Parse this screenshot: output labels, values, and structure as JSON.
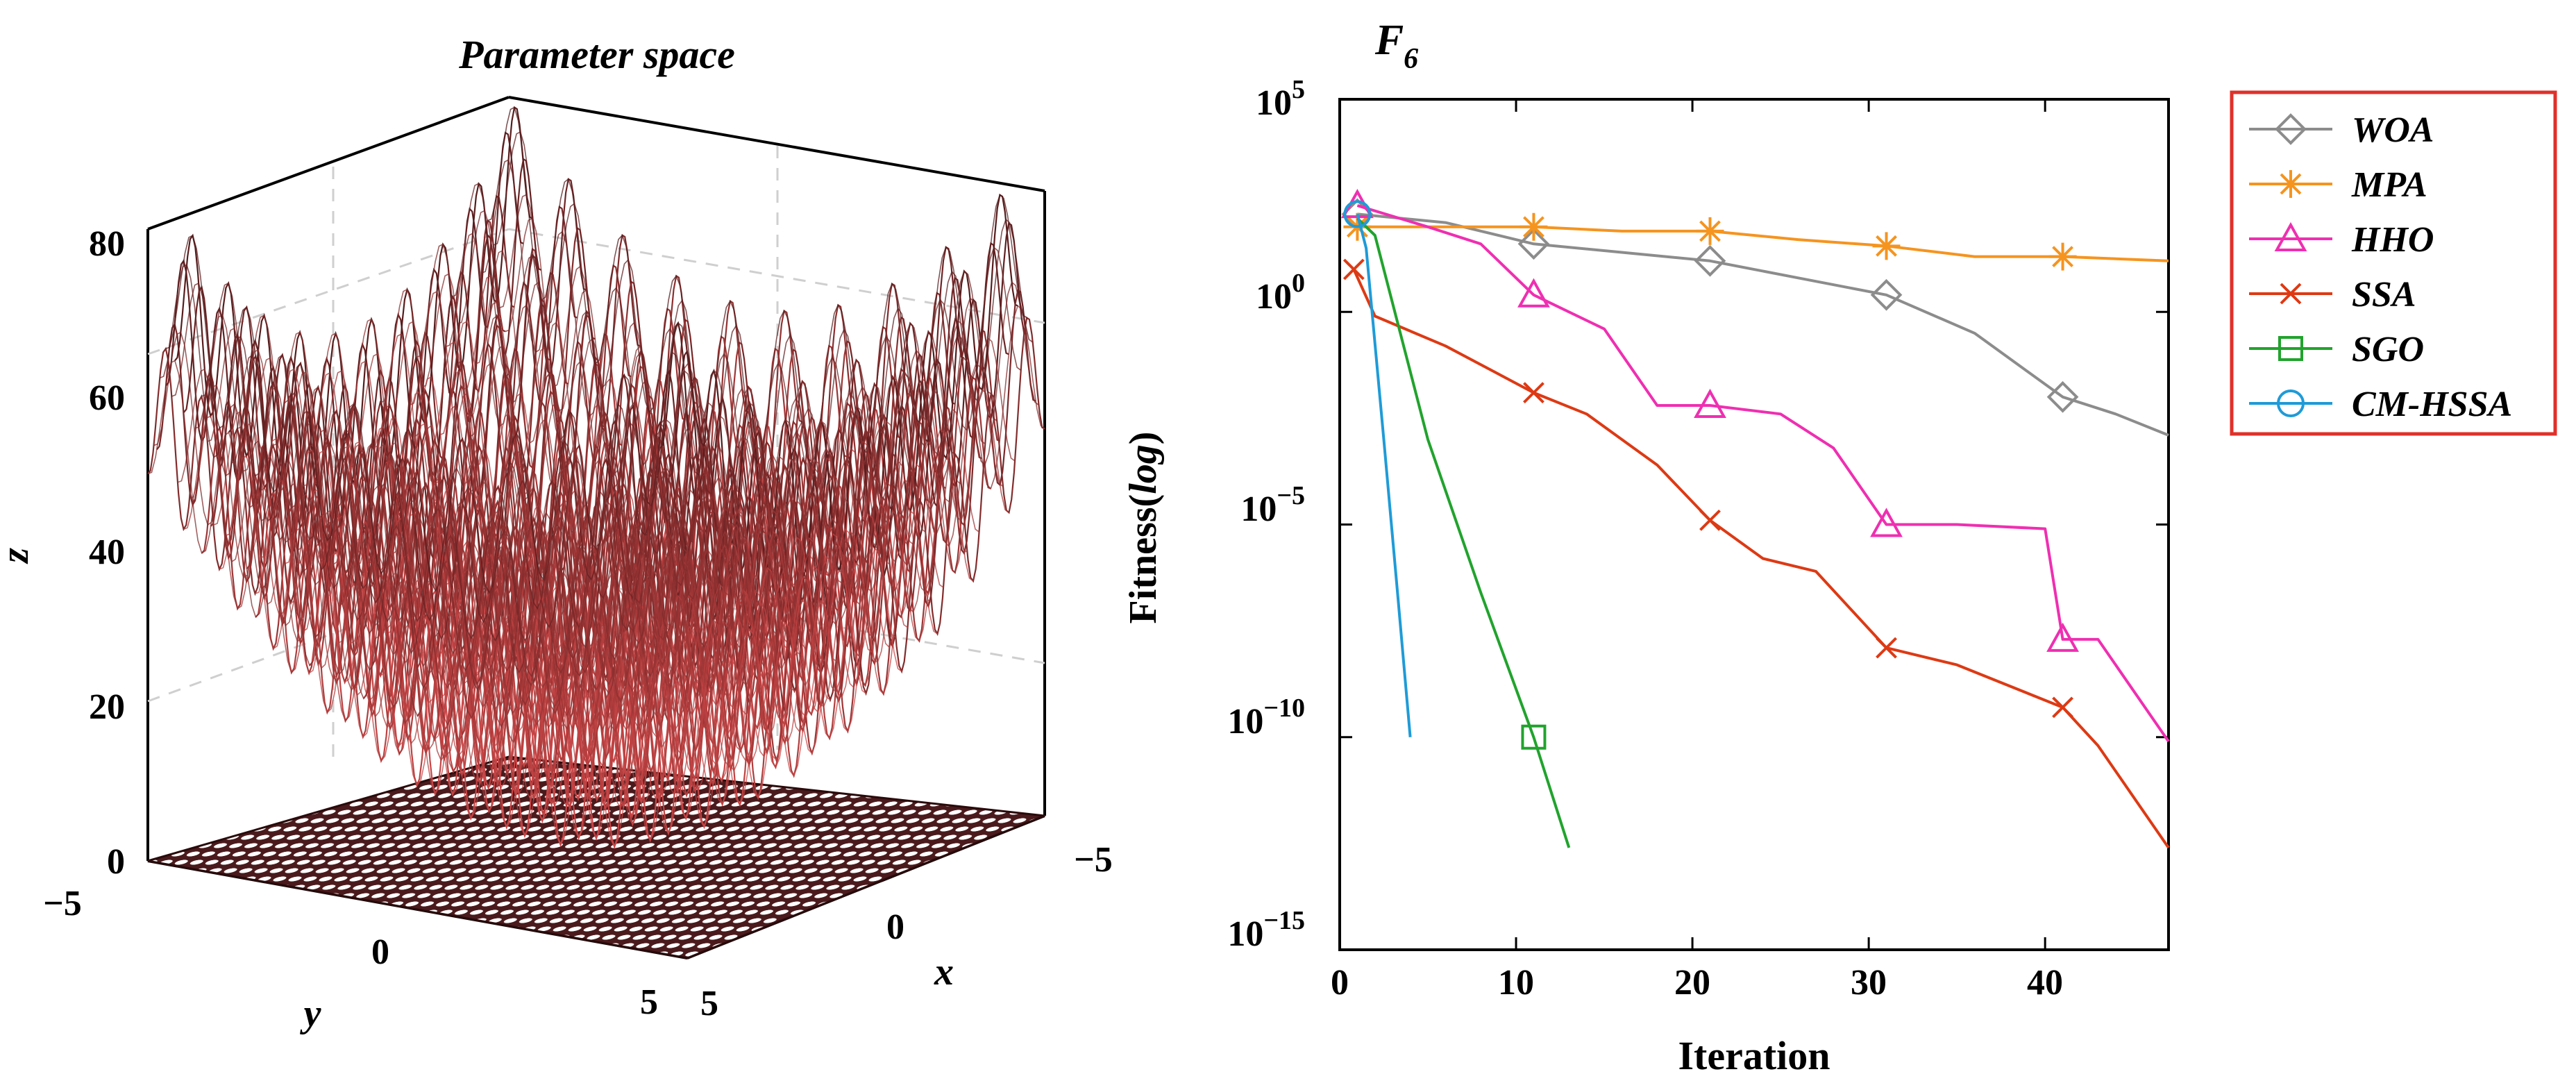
{
  "colors": {
    "axis": "#000000",
    "grid": "#d9d9d9",
    "legend_border": "#e0302a",
    "surface_top": "#1a0506",
    "surface_bottom": "#ff5a5a"
  },
  "chart_data": [
    {
      "type": "surface",
      "title": "Parameter space",
      "zlabel": "z",
      "xlabel": "x",
      "ylabel": "y",
      "zlim": [
        0,
        80
      ],
      "z_ticks": [
        "0",
        "20",
        "40",
        "60",
        "80"
      ],
      "x_range": [
        -5,
        5
      ],
      "y_range": [
        -5,
        5
      ],
      "x_ticks": [
        "−5",
        "0",
        "5"
      ],
      "y_ticks": [
        "−5",
        "0",
        "5"
      ],
      "function": "Rastrigin-like: 20 + x^2 + y^2 - 10(cos 2πx + cos 2πy)",
      "peak_z": 80
    },
    {
      "type": "line",
      "title_main": "F",
      "title_sub": "6",
      "xlabel": "Iteration",
      "ylabel_main": "Fitness(",
      "ylabel_italic": "log",
      "ylabel_close": ")",
      "yscale": "log",
      "xlim": [
        0,
        47
      ],
      "ylim_exp": [
        -15,
        5
      ],
      "x_ticks": [
        {
          "value": 0,
          "label": "0"
        },
        {
          "value": 10,
          "label": "10"
        },
        {
          "value": 20,
          "label": "20"
        },
        {
          "value": 30,
          "label": "30"
        },
        {
          "value": 40,
          "label": "40"
        }
      ],
      "y_ticks": [
        {
          "exp": 5,
          "base": "10",
          "sup": "5"
        },
        {
          "exp": 0,
          "base": "1",
          "sup": "",
          "label": "10",
          "sup0": "0"
        },
        {
          "exp": -5,
          "base": "10",
          "sup": "−5"
        },
        {
          "exp": -10,
          "base": "10",
          "sup": "−10"
        },
        {
          "exp": -15,
          "base": "10",
          "sup": "−15"
        }
      ],
      "series": [
        {
          "name": "WOA",
          "color": "#8c8c8c",
          "marker": "diamond",
          "points": [
            [
              1,
              2.3
            ],
            [
              6,
              2.1
            ],
            [
              11,
              1.6
            ],
            [
              16,
              1.4
            ],
            [
              21,
              1.2
            ],
            [
              26,
              0.8
            ],
            [
              31,
              0.4
            ],
            [
              36,
              -0.5
            ],
            [
              41,
              -2.0
            ],
            [
              44,
              -2.4
            ],
            [
              47,
              -2.9
            ]
          ],
          "markers": [
            [
              1,
              2.3
            ],
            [
              11,
              1.6
            ],
            [
              21,
              1.2
            ],
            [
              31,
              0.4
            ],
            [
              41,
              -2.0
            ]
          ]
        },
        {
          "name": "MPA",
          "color": "#f5941f",
          "marker": "asterisk",
          "points": [
            [
              1,
              2.0
            ],
            [
              6,
              2.0
            ],
            [
              11,
              2.0
            ],
            [
              16,
              1.9
            ],
            [
              21,
              1.9
            ],
            [
              26,
              1.7
            ],
            [
              31,
              1.55
            ],
            [
              36,
              1.3
            ],
            [
              41,
              1.3
            ],
            [
              47,
              1.2
            ]
          ],
          "markers": [
            [
              1,
              2.0
            ],
            [
              11,
              2.0
            ],
            [
              21,
              1.9
            ],
            [
              31,
              1.55
            ],
            [
              41,
              1.3
            ]
          ]
        },
        {
          "name": "HHO",
          "color": "#ef2fb1",
          "marker": "triangle",
          "points": [
            [
              1,
              2.5
            ],
            [
              5,
              2.0
            ],
            [
              8,
              1.6
            ],
            [
              11,
              0.4
            ],
            [
              15,
              -0.4
            ],
            [
              18,
              -2.2
            ],
            [
              21,
              -2.2
            ],
            [
              25,
              -2.4
            ],
            [
              28,
              -3.2
            ],
            [
              31,
              -5.0
            ],
            [
              35,
              -5.0
            ],
            [
              40,
              -5.1
            ],
            [
              41,
              -7.7
            ],
            [
              43,
              -7.7
            ],
            [
              47,
              -10.1
            ]
          ],
          "markers": [
            [
              1,
              2.5
            ],
            [
              11,
              0.4
            ],
            [
              21,
              -2.2
            ],
            [
              31,
              -5.0
            ],
            [
              41,
              -7.7
            ]
          ]
        },
        {
          "name": "SSA",
          "color": "#dd3a14",
          "marker": "x",
          "points": [
            [
              0.8,
              1.0
            ],
            [
              2,
              -0.1
            ],
            [
              6,
              -0.8
            ],
            [
              11,
              -1.9
            ],
            [
              14,
              -2.4
            ],
            [
              18,
              -3.6
            ],
            [
              21,
              -4.9
            ],
            [
              24,
              -5.8
            ],
            [
              27,
              -6.1
            ],
            [
              31,
              -7.9
            ],
            [
              35,
              -8.3
            ],
            [
              41,
              -9.3
            ],
            [
              43,
              -10.2
            ],
            [
              47,
              -12.6
            ]
          ],
          "markers": [
            [
              0.8,
              1.0
            ],
            [
              11,
              -1.9
            ],
            [
              21,
              -4.9
            ],
            [
              31,
              -7.9
            ],
            [
              41,
              -9.3
            ]
          ]
        },
        {
          "name": "SGO",
          "color": "#21a32d",
          "marker": "square",
          "points": [
            [
              1,
              2.2
            ],
            [
              2,
              1.8
            ],
            [
              5,
              -3.0
            ],
            [
              8,
              -6.6
            ],
            [
              11,
              -10.0
            ],
            [
              13,
              -12.6
            ]
          ],
          "markers": [
            [
              11,
              -10.0
            ]
          ]
        },
        {
          "name": "CM-HSSA",
          "color": "#1f9bd7",
          "marker": "circle",
          "points": [
            [
              1,
              2.3
            ],
            [
              1.5,
              1.5
            ],
            [
              2.5,
              -3.0
            ],
            [
              3.3,
              -6.7
            ],
            [
              4,
              -10.0
            ]
          ],
          "markers": [
            [
              1,
              2.3
            ]
          ]
        }
      ]
    }
  ]
}
